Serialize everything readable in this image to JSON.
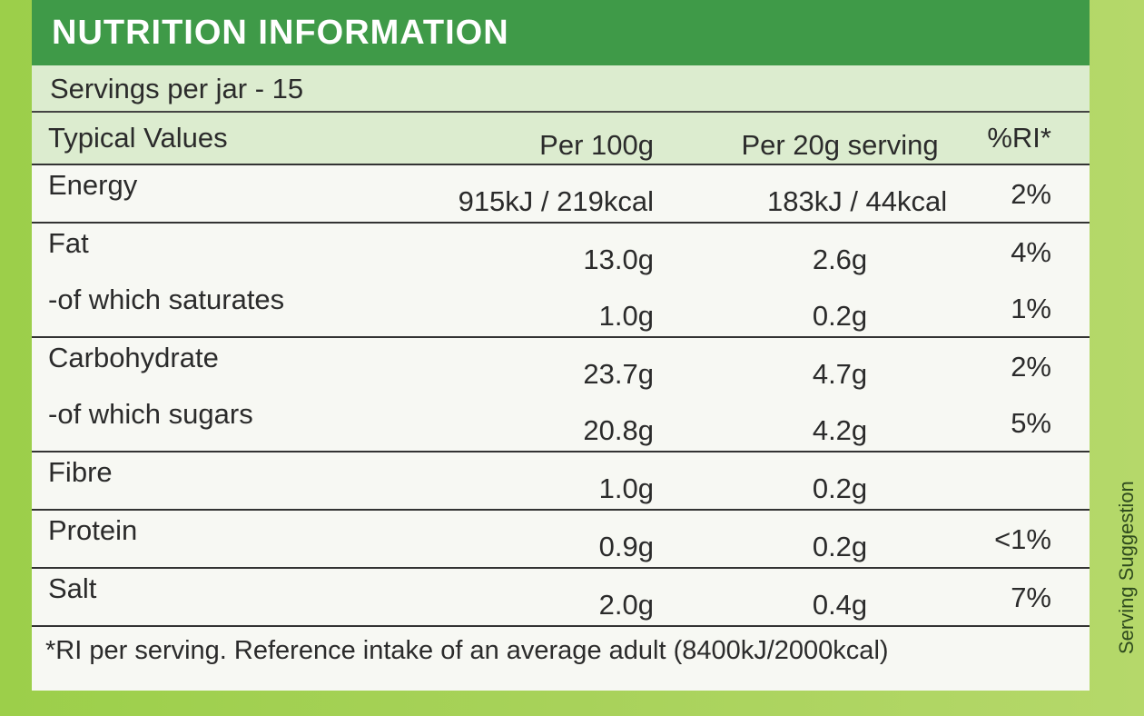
{
  "header": {
    "title": "NUTRITION INFORMATION"
  },
  "servings": "Servings per jar - 15",
  "table": {
    "columns": [
      "Typical Values",
      "Per 100g",
      "Per 20g serving",
      "%RI*"
    ],
    "groups": [
      [
        [
          "Energy",
          "915kJ / 219kcal",
          "183kJ / 44kcal",
          "2%"
        ]
      ],
      [
        [
          "Fat",
          "13.0g",
          "2.6g",
          "4%"
        ],
        [
          "-of which saturates",
          "1.0g",
          "0.2g",
          "1%"
        ]
      ],
      [
        [
          "Carbohydrate",
          "23.7g",
          "4.7g",
          "2%"
        ],
        [
          "-of which sugars",
          "20.8g",
          "4.2g",
          "5%"
        ]
      ],
      [
        [
          "Fibre",
          "1.0g",
          "0.2g"
        ]
      ],
      [
        [
          "Protein",
          "0.9g",
          "0.2g",
          "<1%"
        ]
      ],
      [
        [
          "Salt",
          "2.0g",
          "0.4g",
          "7%"
        ]
      ]
    ]
  },
  "footnote": "*RI per serving. Reference intake of an average adult (8400kJ/2000kcal)",
  "side_text": "Serving Suggestion"
}
